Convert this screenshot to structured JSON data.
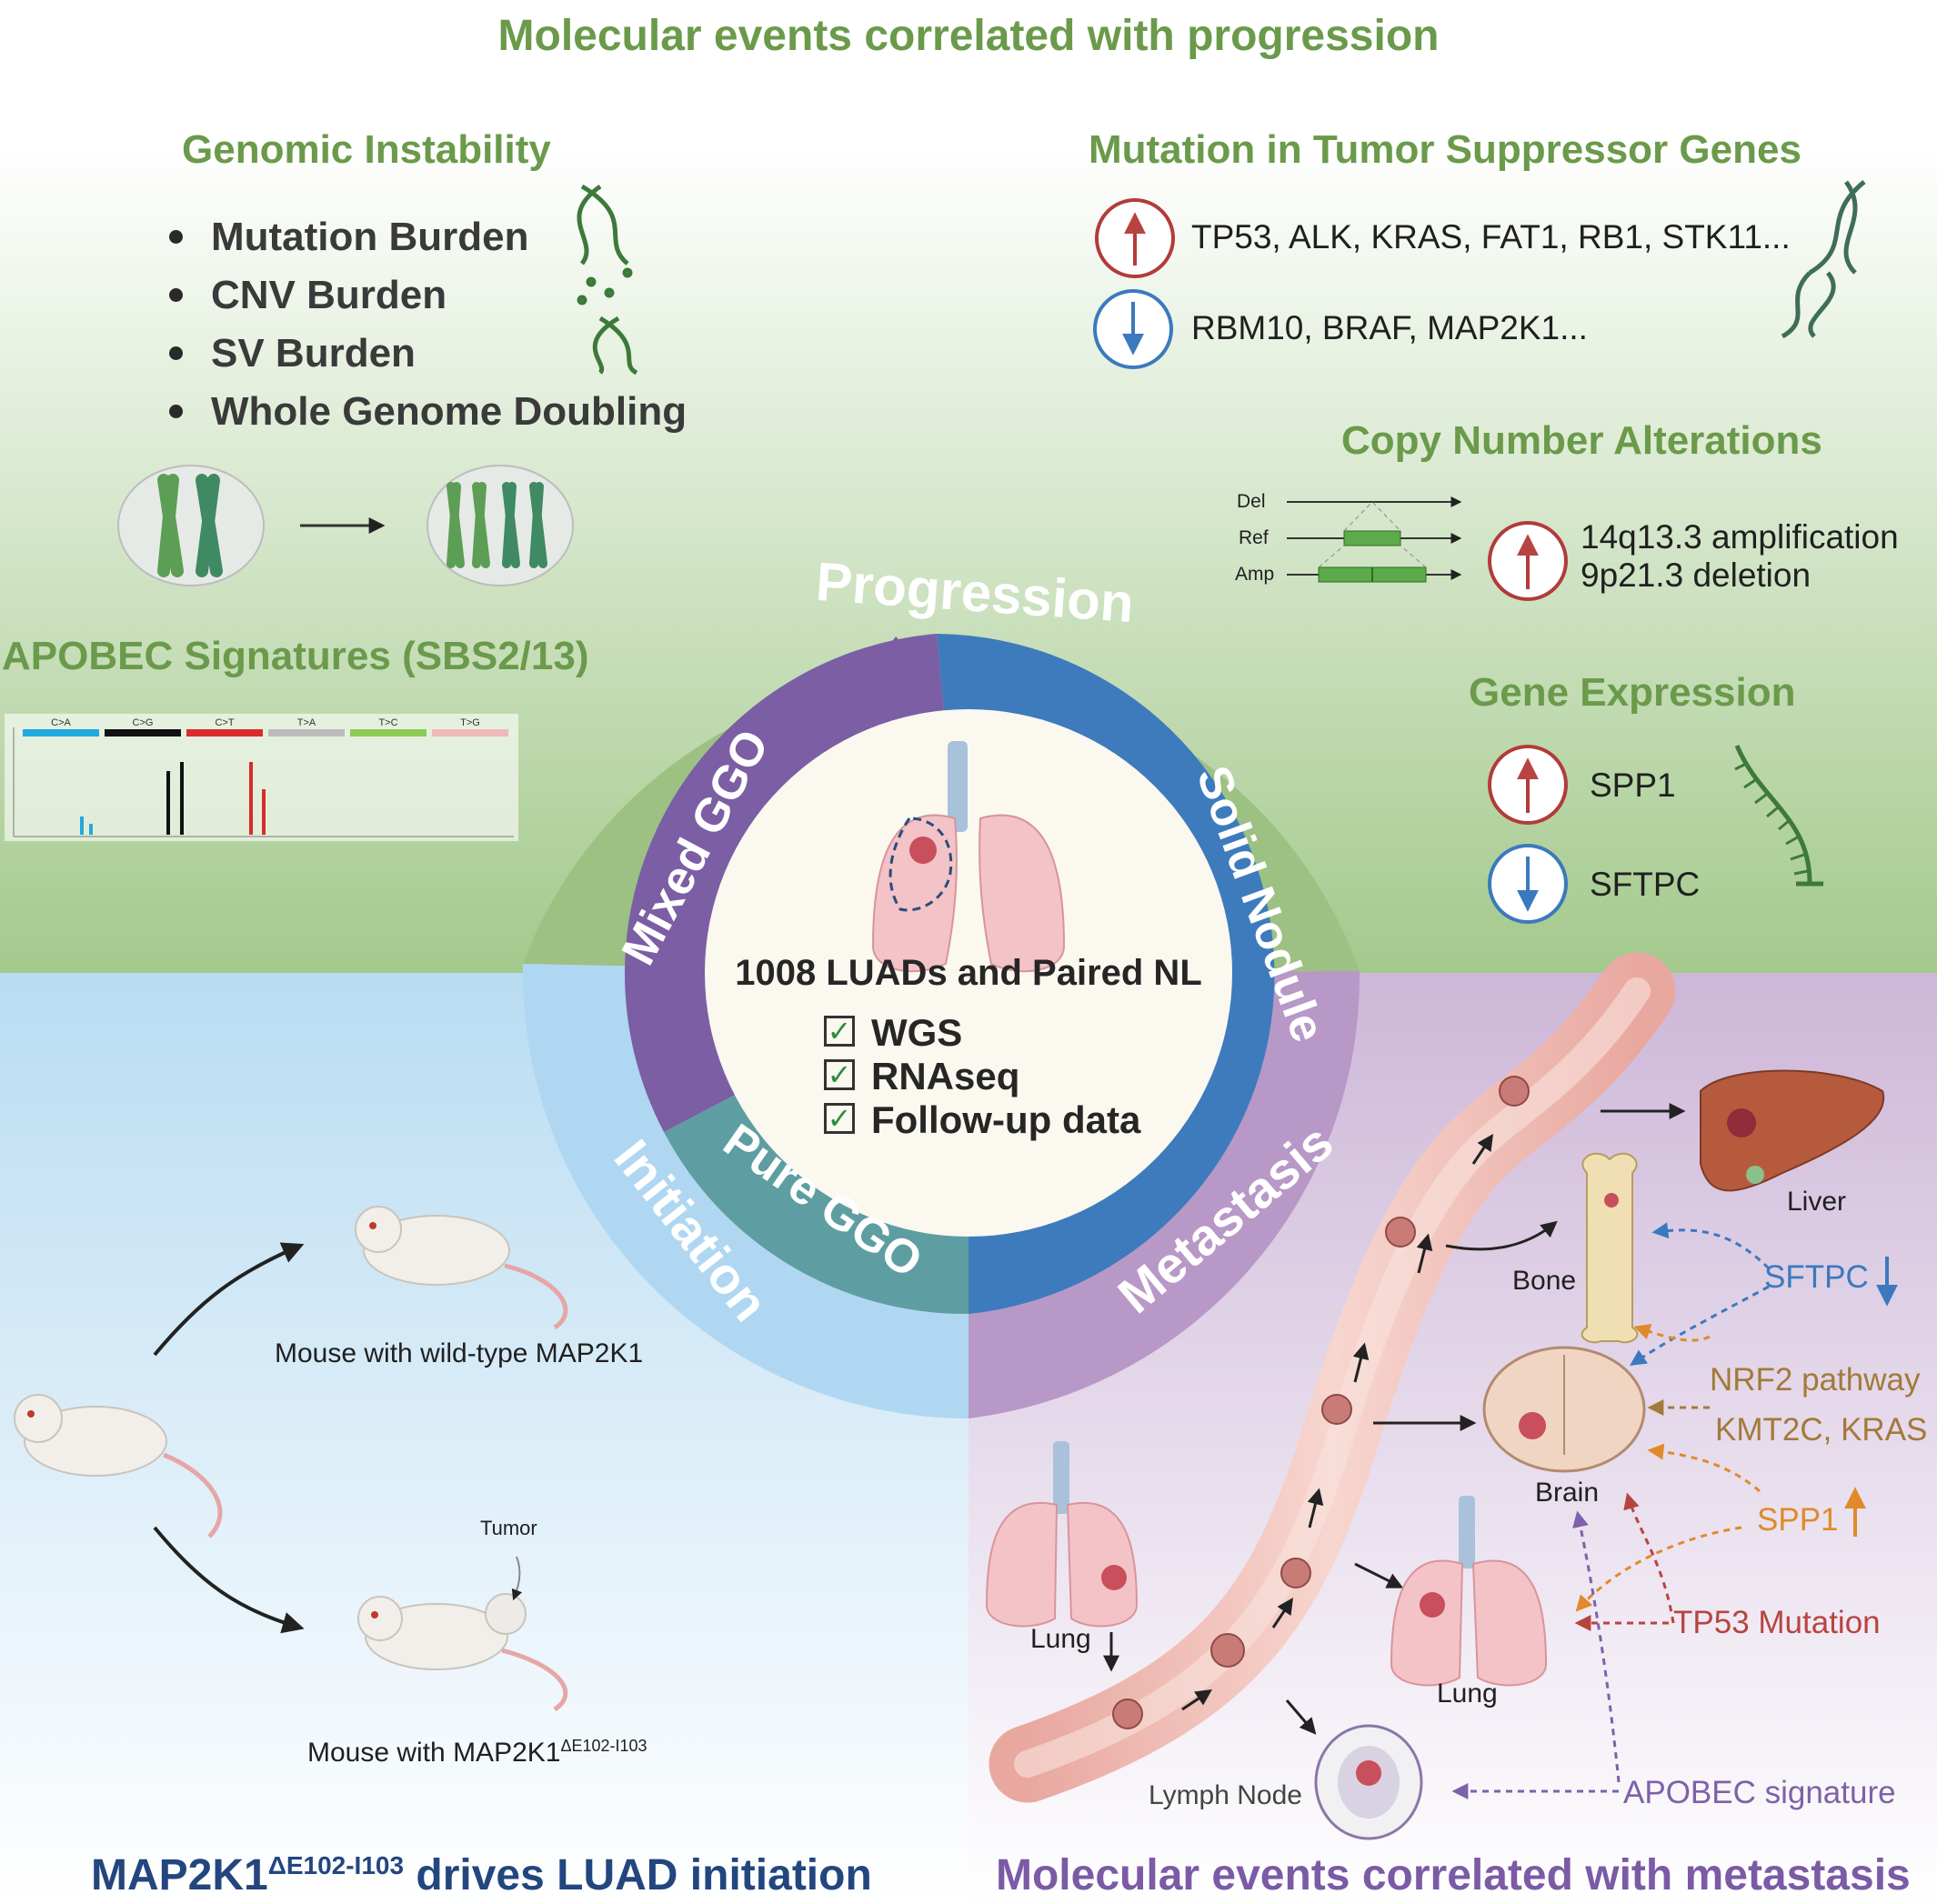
{
  "title": "Molecular events correlated with progression",
  "genomic_instability": {
    "heading": "Genomic Instability",
    "items": [
      "Mutation Burden",
      "CNV Burden",
      "SV Burden",
      "Whole Genome Doubling"
    ]
  },
  "tumor_suppressor": {
    "heading": "Mutation in Tumor Suppressor Genes",
    "up_genes": "TP53, ALK, KRAS, FAT1, RB1, STK11...",
    "down_genes": "RBM10, BRAF, MAP2K1..."
  },
  "copy_number": {
    "heading": "Copy Number Alterations",
    "track_labels": [
      "Del",
      "Ref",
      "Amp"
    ],
    "amplification": "14q13.3 amplification",
    "deletion": "9p21.3 deletion"
  },
  "apobec": {
    "heading": "APOBEC Signatures (SBS2/13)",
    "categories": [
      "C>A",
      "C>G",
      "C>T",
      "T>A",
      "T>C",
      "T>G"
    ],
    "category_colors": [
      "#22a9df",
      "#111111",
      "#d92b2b",
      "#bbbbbb",
      "#8bcb54",
      "#f0b8b8"
    ]
  },
  "gene_expression": {
    "heading": "Gene Expression",
    "up": "SPP1",
    "down": "SFTPC"
  },
  "ring": {
    "progression": "Progression",
    "mixed_ggo": "Mixed GGO",
    "solid_nodule": "Solid Nodule",
    "pure_ggo": "Pure GGO",
    "initiation": "Initiation",
    "metastasis": "Metastasis",
    "center_title": "1008 LUADs and Paired NL",
    "checklist": [
      "WGS",
      "RNAseq",
      "Follow-up data"
    ]
  },
  "initiation_panel": {
    "wild_type_label": "Mouse with wild-type MAP2K1",
    "tumor_label": "Tumor",
    "mutant_label": "Mouse with MAP2K1",
    "mutant_superscript": "ΔE102-I103",
    "footer_gene": "MAP2K1",
    "footer_superscript": "ΔE102-I103",
    "footer_rest": " drives LUAD initiation"
  },
  "metastasis_panel": {
    "organs": {
      "liver": "Liver",
      "bone": "Bone",
      "brain": "Brain",
      "lung_source": "Lung",
      "lung_target": "Lung",
      "lymph_node": "Lymph Node"
    },
    "factors": {
      "sftpc": "SFTPC",
      "nrf2": "NRF2 pathway",
      "kmt2c": "KMT2C, KRAS",
      "spp1": "SPP1",
      "tp53": "TP53 Mutation",
      "apobec": "APOBEC signature"
    },
    "footer": "Molecular events correlated with metastasis"
  },
  "colors": {
    "heading_green": "#6a9a4a",
    "ring_green": "#9cc183",
    "ring_purple": "#7b5ea3",
    "ring_blue": "#3e7bbd",
    "ring_teal": "#5e9ea2",
    "ring_lightblue": "#b0d7f1",
    "ring_lilac": "#b898c7",
    "up_red": "#b23b3b",
    "down_blue": "#3b79bf",
    "spp1_orange": "#e08a2b",
    "nrf2_brown": "#a37a3a",
    "tp53_red": "#b8443f",
    "apobec_purple": "#7e61a9",
    "footer_navy": "#23467f",
    "footer_purple": "#7b5aa6"
  }
}
